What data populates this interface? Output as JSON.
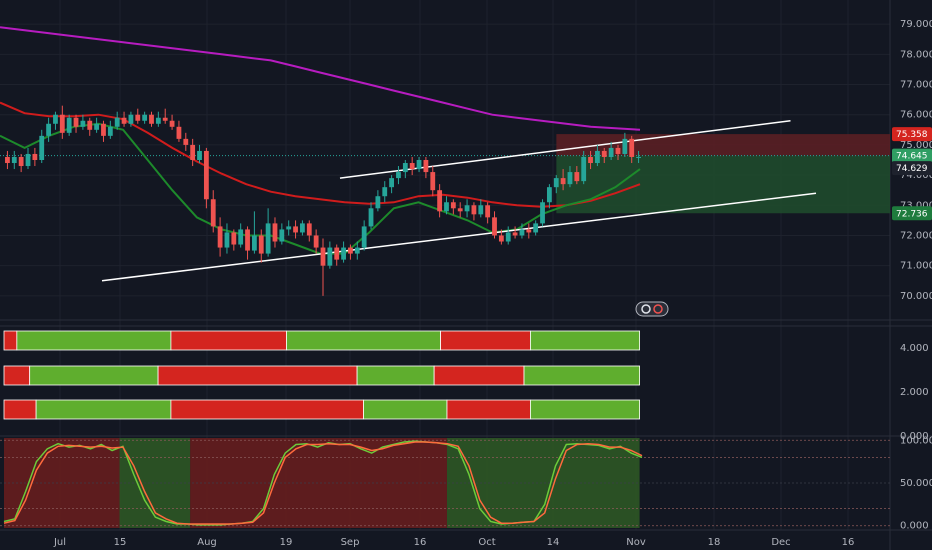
{
  "colors": {
    "background": "#131722",
    "grid": "#1e222d",
    "up": "#26a69a",
    "down": "#ef5350",
    "ma_long": "#b71cc0",
    "ma_mid": "#d01c1c",
    "ma_short": "#1d8a2b",
    "channel": "#ffffff",
    "bar_green": "#5fae2e",
    "bar_red": "#d4251f",
    "stoch_k": "#6ccb3a",
    "stoch_d": "#ff6a3d",
    "loss_zone": "#5a1f24",
    "profit_zone": "#1f4a2c"
  },
  "chart_data": [
    {
      "type": "candlestick",
      "x_labels": [
        "Jul",
        "15",
        "Aug",
        "19",
        "Sep",
        "16",
        "Oct",
        "14",
        "Nov",
        "18",
        "Dec",
        "16"
      ],
      "y_ticks": [
        "79.000",
        "78.000",
        "77.000",
        "76.000",
        "75.000",
        "74.000",
        "73.000",
        "72.000",
        "71.000",
        "70.000"
      ],
      "ylim": [
        69.2,
        79.8
      ],
      "price_labels": [
        {
          "text": "75.358",
          "value": 75.358,
          "color": "#d4251f"
        },
        {
          "text": "74.645",
          "value": 74.645,
          "color": "#2f9e63"
        },
        {
          "text": "74.629",
          "value": 74.629,
          "color": "#1e222d"
        },
        {
          "text": "72.736",
          "value": 72.736,
          "color": "#1e7b3d"
        }
      ],
      "candles": [
        [
          74.6,
          74.4,
          74.8,
          74.2
        ],
        [
          74.4,
          74.6,
          74.8,
          74.2
        ],
        [
          74.6,
          74.3,
          74.7,
          74.1
        ],
        [
          74.3,
          74.7,
          74.9,
          74.2
        ],
        [
          74.7,
          74.5,
          74.9,
          74.3
        ],
        [
          74.5,
          75.3,
          75.5,
          74.4
        ],
        [
          75.3,
          75.7,
          75.9,
          75.1
        ],
        [
          75.7,
          76.0,
          76.1,
          75.5
        ],
        [
          76.0,
          75.4,
          76.3,
          75.2
        ],
        [
          75.4,
          75.9,
          76.0,
          75.3
        ],
        [
          75.9,
          75.6,
          76.0,
          75.4
        ],
        [
          75.6,
          75.8,
          76.0,
          75.5
        ],
        [
          75.8,
          75.5,
          75.9,
          75.3
        ],
        [
          75.5,
          75.7,
          75.9,
          75.4
        ],
        [
          75.7,
          75.3,
          75.8,
          75.1
        ],
        [
          75.3,
          75.6,
          75.8,
          75.2
        ],
        [
          75.6,
          75.9,
          76.1,
          75.5
        ],
        [
          75.9,
          75.7,
          76.1,
          75.6
        ],
        [
          75.7,
          76.0,
          76.1,
          75.6
        ],
        [
          76.0,
          75.8,
          76.2,
          75.7
        ],
        [
          75.8,
          76.0,
          76.1,
          75.7
        ],
        [
          76.0,
          75.7,
          76.1,
          75.6
        ],
        [
          75.7,
          75.9,
          76.1,
          75.6
        ],
        [
          75.9,
          75.8,
          76.2,
          75.7
        ],
        [
          75.8,
          75.6,
          76.0,
          75.5
        ],
        [
          75.6,
          75.2,
          75.8,
          75.1
        ],
        [
          75.2,
          75.0,
          75.4,
          74.8
        ],
        [
          75.0,
          74.5,
          75.2,
          74.3
        ],
        [
          74.5,
          74.8,
          75.0,
          74.4
        ],
        [
          74.8,
          73.2,
          74.9,
          72.9
        ],
        [
          73.2,
          72.3,
          73.5,
          72.1
        ],
        [
          72.3,
          71.6,
          72.6,
          71.3
        ],
        [
          71.6,
          72.1,
          72.4,
          71.4
        ],
        [
          72.1,
          71.7,
          72.2,
          71.5
        ],
        [
          71.7,
          72.2,
          72.4,
          71.6
        ],
        [
          72.2,
          71.5,
          72.3,
          71.2
        ],
        [
          71.5,
          72.0,
          72.8,
          71.4
        ],
        [
          72.0,
          71.4,
          72.2,
          71.1
        ],
        [
          71.4,
          72.4,
          72.9,
          71.3
        ],
        [
          72.4,
          71.8,
          72.6,
          71.6
        ],
        [
          71.8,
          72.2,
          72.4,
          71.7
        ],
        [
          72.2,
          72.3,
          72.5,
          72.0
        ],
        [
          72.3,
          72.1,
          72.5,
          71.9
        ],
        [
          72.1,
          72.4,
          72.5,
          72.0
        ],
        [
          72.4,
          72.0,
          72.5,
          71.8
        ],
        [
          72.0,
          71.6,
          72.2,
          71.4
        ],
        [
          71.6,
          71.0,
          71.9,
          70.0
        ],
        [
          71.0,
          71.6,
          71.8,
          70.9
        ],
        [
          71.6,
          71.2,
          71.7,
          71.0
        ],
        [
          71.2,
          71.6,
          71.8,
          71.1
        ],
        [
          71.6,
          71.4,
          71.7,
          71.2
        ],
        [
          71.4,
          71.6,
          71.8,
          71.2
        ],
        [
          71.6,
          72.3,
          72.5,
          71.5
        ],
        [
          72.3,
          72.9,
          73.1,
          72.2
        ],
        [
          72.9,
          73.3,
          73.5,
          72.8
        ],
        [
          73.3,
          73.6,
          73.8,
          73.1
        ],
        [
          73.6,
          73.9,
          74.0,
          73.4
        ],
        [
          73.9,
          74.1,
          74.3,
          73.7
        ],
        [
          74.1,
          74.4,
          74.5,
          73.9
        ],
        [
          74.4,
          74.2,
          74.6,
          74.0
        ],
        [
          74.2,
          74.5,
          74.6,
          74.1
        ],
        [
          74.5,
          74.1,
          74.6,
          73.9
        ],
        [
          74.1,
          73.5,
          74.3,
          73.3
        ],
        [
          73.5,
          72.8,
          73.7,
          72.6
        ],
        [
          72.8,
          73.1,
          73.3,
          72.7
        ],
        [
          73.1,
          72.9,
          73.2,
          72.7
        ],
        [
          72.9,
          72.8,
          73.1,
          72.6
        ],
        [
          72.8,
          73.0,
          73.2,
          72.6
        ],
        [
          73.0,
          72.7,
          73.1,
          72.5
        ],
        [
          72.7,
          73.0,
          73.2,
          72.6
        ],
        [
          73.0,
          72.6,
          73.1,
          72.4
        ],
        [
          72.6,
          72.0,
          72.8,
          71.9
        ],
        [
          72.0,
          71.8,
          72.2,
          71.7
        ],
        [
          71.8,
          72.1,
          72.3,
          71.7
        ],
        [
          72.1,
          72.0,
          72.3,
          71.9
        ],
        [
          72.0,
          72.2,
          72.4,
          71.9
        ],
        [
          72.2,
          72.1,
          72.4,
          71.9
        ],
        [
          72.1,
          72.4,
          72.5,
          72.0
        ],
        [
          72.4,
          73.1,
          73.2,
          72.3
        ],
        [
          73.1,
          73.6,
          73.7,
          72.9
        ],
        [
          73.6,
          73.9,
          74.0,
          73.4
        ],
        [
          73.9,
          73.7,
          74.2,
          73.5
        ],
        [
          73.7,
          74.1,
          74.3,
          73.6
        ],
        [
          74.1,
          73.8,
          74.3,
          73.7
        ],
        [
          73.8,
          74.6,
          74.8,
          73.7
        ],
        [
          74.6,
          74.4,
          74.8,
          74.2
        ],
        [
          74.4,
          74.8,
          75.0,
          74.3
        ],
        [
          74.8,
          74.6,
          74.9,
          74.4
        ],
        [
          74.6,
          74.9,
          75.1,
          74.5
        ],
        [
          74.9,
          74.7,
          75.0,
          74.5
        ],
        [
          74.7,
          75.2,
          75.4,
          74.6
        ],
        [
          75.2,
          74.6,
          75.3,
          74.4
        ],
        [
          74.6,
          74.6,
          74.8,
          74.4
        ]
      ],
      "ma_long": [
        78.9,
        78.8,
        78.7,
        78.6,
        78.5,
        78.4,
        78.3,
        78.2,
        78.1,
        78.0,
        77.9,
        77.8,
        77.6,
        77.4,
        77.2,
        77.0,
        76.8,
        76.6,
        76.4,
        76.2,
        76.0,
        75.9,
        75.8,
        75.7,
        75.6,
        75.55,
        75.5
      ],
      "ma_mid": [
        76.4,
        76.05,
        75.95,
        75.95,
        76.0,
        75.85,
        75.4,
        74.9,
        74.45,
        74.05,
        73.7,
        73.45,
        73.3,
        73.2,
        73.1,
        73.05,
        73.1,
        73.3,
        73.35,
        73.25,
        73.1,
        73.0,
        72.95,
        73.0,
        73.15,
        73.4,
        73.7
      ],
      "ma_short": [
        75.3,
        74.9,
        75.3,
        75.6,
        75.7,
        75.5,
        74.5,
        73.5,
        72.6,
        72.2,
        72.0,
        72.0,
        71.7,
        71.4,
        71.4,
        72.1,
        72.9,
        73.1,
        72.8,
        72.5,
        72.1,
        72.2,
        72.7,
        73.0,
        73.2,
        73.6,
        74.2
      ],
      "channel_upper": [
        [
          73.9,
          40
        ],
        [
          75.8,
          93
        ]
      ],
      "channel_lower": [
        [
          70.5,
          12
        ],
        [
          73.4,
          96
        ]
      ],
      "trade_zone": {
        "entry": 74.645,
        "stop": 75.358,
        "target": 72.736,
        "start_index": 72,
        "end_index": 104
      }
    },
    {
      "type": "bar_segments",
      "ylim": [
        0,
        5
      ],
      "y_ticks": [
        "4.000",
        "2.000",
        "0.000"
      ],
      "rows": [
        {
          "segments": [
            [
              "red",
              0,
              2
            ],
            [
              "green",
              2,
              26
            ],
            [
              "red",
              26,
              44
            ],
            [
              "green",
              44,
              68
            ],
            [
              "red",
              68,
              82
            ],
            [
              "green",
              82,
              99
            ]
          ]
        },
        {
          "segments": [
            [
              "red",
              0,
              4
            ],
            [
              "green",
              4,
              24
            ],
            [
              "red",
              24,
              55
            ],
            [
              "green",
              55,
              67
            ],
            [
              "red",
              67,
              81
            ],
            [
              "green",
              81,
              99
            ]
          ]
        },
        {
          "segments": [
            [
              "red",
              0,
              5
            ],
            [
              "green",
              5,
              26
            ],
            [
              "red",
              26,
              56
            ],
            [
              "green",
              56,
              69
            ],
            [
              "red",
              69,
              82
            ],
            [
              "green",
              82,
              99
            ]
          ]
        }
      ]
    },
    {
      "type": "line",
      "ylim": [
        -5,
        105
      ],
      "y_ticks": [
        "100.000",
        "50.000",
        "0.000"
      ],
      "series": [
        {
          "values": [
            5,
            8,
            40,
            75,
            90,
            96,
            92,
            94,
            90,
            95,
            88,
            93,
            60,
            30,
            10,
            5,
            2,
            2,
            1,
            1,
            1,
            2,
            3,
            5,
            20,
            60,
            85,
            95,
            96,
            92,
            97,
            95,
            96,
            90,
            85,
            92,
            95,
            98,
            99,
            98,
            97,
            95,
            90,
            60,
            20,
            5,
            2,
            3,
            4,
            5,
            25,
            70,
            95,
            96,
            95,
            94,
            90,
            93,
            85,
            80
          ]
        },
        {
          "values": [
            3,
            6,
            30,
            65,
            85,
            93,
            94,
            93,
            92,
            93,
            91,
            92,
            70,
            40,
            15,
            8,
            3,
            2,
            2,
            2,
            2,
            2,
            3,
            4,
            15,
            50,
            80,
            90,
            95,
            95,
            96,
            95,
            95,
            92,
            88,
            90,
            94,
            96,
            98,
            98,
            97,
            96,
            93,
            70,
            30,
            10,
            3,
            3,
            4,
            5,
            15,
            55,
            88,
            95,
            96,
            95,
            92,
            92,
            88,
            82
          ]
        }
      ],
      "zones": [
        [
          "red",
          0,
          18
        ],
        [
          "green",
          18,
          29
        ],
        [
          "red",
          29,
          69
        ],
        [
          "green",
          69,
          99
        ]
      ]
    }
  ]
}
